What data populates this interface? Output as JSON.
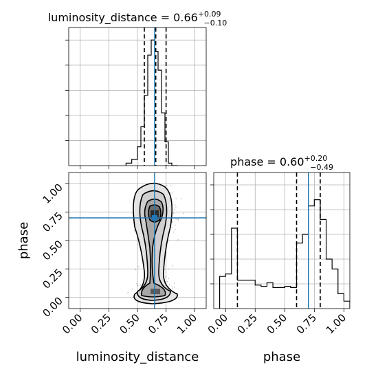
{
  "chart_data": {
    "type": "corner",
    "parameters": [
      "luminosity_distance",
      "phase"
    ],
    "truth": {
      "luminosity_distance": 0.65,
      "phase": 0.7
    },
    "colors": {
      "truth": "#1f77b4",
      "hist": "#000000",
      "grid": "#b0b0b0",
      "quantile": "#000000"
    },
    "grid": true,
    "panels": {
      "luminosity_distance": {
        "title_prefix": "luminosity_distance = 0.66",
        "median": "0.66",
        "plus": "+0.09",
        "minus": "−0.10",
        "quantiles": [
          0.56,
          0.66,
          0.75
        ],
        "xlim": [
          -0.1,
          1.1
        ],
        "ylim": [
          0,
          1.0
        ],
        "bin_edges": [
          0.4,
          0.45,
          0.5,
          0.53,
          0.56,
          0.59,
          0.62,
          0.65,
          0.68,
          0.71,
          0.74,
          0.77,
          0.8,
          0.85
        ],
        "counts": [
          0.02,
          0.05,
          0.15,
          0.31,
          0.56,
          0.88,
          1.0,
          0.91,
          0.76,
          0.42,
          0.19,
          0.02,
          0.0
        ]
      },
      "phase": {
        "title_prefix": "phase = 0.60",
        "median": "0.60",
        "plus": "+0.20",
        "minus": "−0.49",
        "quantiles": [
          0.1,
          0.6,
          0.8
        ],
        "xlim": [
          -0.1,
          1.05
        ],
        "ylim": [
          0,
          1.0
        ],
        "bin_edges": [
          -0.05,
          0.0,
          0.05,
          0.1,
          0.15,
          0.2,
          0.25,
          0.3,
          0.35,
          0.4,
          0.45,
          0.5,
          0.55,
          0.6,
          0.65,
          0.7,
          0.75,
          0.8,
          0.85,
          0.9,
          0.95,
          1.0,
          1.05
        ],
        "counts": [
          0.26,
          0.28,
          0.65,
          0.23,
          0.23,
          0.23,
          0.19,
          0.18,
          0.21,
          0.17,
          0.17,
          0.18,
          0.17,
          0.53,
          0.6,
          0.83,
          0.88,
          0.72,
          0.4,
          0.32,
          0.12,
          0.06
        ]
      }
    },
    "joint": {
      "xlim": [
        -0.1,
        1.1
      ],
      "ylim": [
        -0.1,
        1.1
      ],
      "x_ticks": [
        "0.00",
        "0.25",
        "0.50",
        "0.75",
        "1.00"
      ],
      "y_ticks": [
        "0.00",
        "0.25",
        "0.50",
        "0.75",
        "1.00"
      ],
      "xlabel": "luminosity_distance",
      "ylabel": "phase"
    },
    "phase_x_ticks": [
      "0.00",
      "0.25",
      "0.50",
      "0.75",
      "1.00"
    ],
    "phase_xlabel": "phase"
  }
}
